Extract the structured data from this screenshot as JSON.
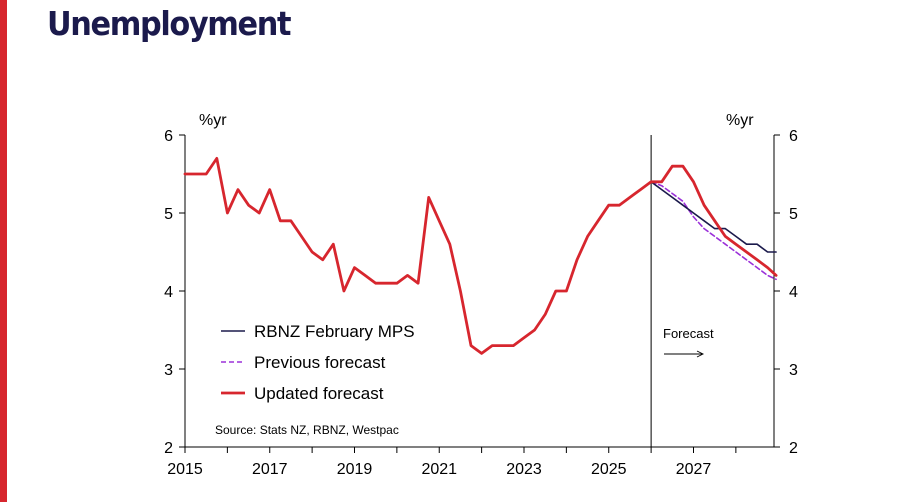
{
  "page": {
    "title": "Unemployment"
  },
  "chart_data": {
    "type": "line",
    "title": "",
    "xlabel": "",
    "ylabel_left": "%yr",
    "ylabel_right": "%yr",
    "xlim": [
      2015,
      2028.9
    ],
    "ylim": [
      2,
      6
    ],
    "yticks": [
      2,
      3,
      4,
      5,
      6
    ],
    "xticks": [
      2015,
      2017,
      2019,
      2021,
      2023,
      2025,
      2027
    ],
    "forecast_start": 2026,
    "forecast_label": "Forecast",
    "source": "Source: Stats NZ, RBNZ, Westpac",
    "legend": {
      "placement": "bottom-left"
    },
    "series": [
      {
        "name": "RBNZ February MPS",
        "color": "#1b1a4c",
        "style": "solid",
        "points": [
          [
            2026.0,
            5.4
          ],
          [
            2026.25,
            5.3
          ],
          [
            2026.5,
            5.2
          ],
          [
            2026.75,
            5.1
          ],
          [
            2027.0,
            5.0
          ],
          [
            2027.25,
            4.9
          ],
          [
            2027.5,
            4.8
          ],
          [
            2027.75,
            4.8
          ],
          [
            2028.0,
            4.7
          ],
          [
            2028.25,
            4.6
          ],
          [
            2028.5,
            4.6
          ],
          [
            2028.75,
            4.5
          ],
          [
            2028.95,
            4.5
          ]
        ]
      },
      {
        "name": "Previous forecast",
        "color": "#9b30d9",
        "style": "dashed",
        "points": [
          [
            2026.0,
            5.4
          ],
          [
            2026.25,
            5.35
          ],
          [
            2026.5,
            5.25
          ],
          [
            2026.75,
            5.15
          ],
          [
            2027.0,
            4.95
          ],
          [
            2027.25,
            4.8
          ],
          [
            2027.5,
            4.7
          ],
          [
            2027.75,
            4.6
          ],
          [
            2028.0,
            4.5
          ],
          [
            2028.25,
            4.4
          ],
          [
            2028.5,
            4.3
          ],
          [
            2028.75,
            4.2
          ],
          [
            2028.95,
            4.15
          ]
        ]
      },
      {
        "name": "Updated forecast",
        "color": "#d7262e",
        "style": "solid",
        "points": [
          [
            2015.0,
            5.5
          ],
          [
            2015.25,
            5.5
          ],
          [
            2015.5,
            5.5
          ],
          [
            2015.75,
            5.7
          ],
          [
            2016.0,
            5.0
          ],
          [
            2016.25,
            5.3
          ],
          [
            2016.5,
            5.1
          ],
          [
            2016.75,
            5.0
          ],
          [
            2017.0,
            5.3
          ],
          [
            2017.25,
            4.9
          ],
          [
            2017.5,
            4.9
          ],
          [
            2017.75,
            4.7
          ],
          [
            2018.0,
            4.5
          ],
          [
            2018.25,
            4.4
          ],
          [
            2018.5,
            4.6
          ],
          [
            2018.75,
            4.0
          ],
          [
            2019.0,
            4.3
          ],
          [
            2019.25,
            4.2
          ],
          [
            2019.5,
            4.1
          ],
          [
            2019.75,
            4.1
          ],
          [
            2020.0,
            4.1
          ],
          [
            2020.25,
            4.2
          ],
          [
            2020.5,
            4.1
          ],
          [
            2020.75,
            5.2
          ],
          [
            2021.0,
            4.9
          ],
          [
            2021.25,
            4.6
          ],
          [
            2021.5,
            4.0
          ],
          [
            2021.75,
            3.3
          ],
          [
            2022.0,
            3.2
          ],
          [
            2022.25,
            3.3
          ],
          [
            2022.5,
            3.3
          ],
          [
            2022.75,
            3.3
          ],
          [
            2023.0,
            3.4
          ],
          [
            2023.25,
            3.5
          ],
          [
            2023.5,
            3.7
          ],
          [
            2023.75,
            4.0
          ],
          [
            2024.0,
            4.0
          ],
          [
            2024.25,
            4.4
          ],
          [
            2024.5,
            4.7
          ],
          [
            2024.75,
            4.9
          ],
          [
            2025.0,
            5.1
          ],
          [
            2025.25,
            5.1
          ],
          [
            2025.5,
            5.2
          ],
          [
            2025.75,
            5.3
          ],
          [
            2026.0,
            5.4
          ],
          [
            2026.25,
            5.4
          ],
          [
            2026.5,
            5.6
          ],
          [
            2026.75,
            5.6
          ],
          [
            2027.0,
            5.4
          ],
          [
            2027.25,
            5.1
          ],
          [
            2027.5,
            4.9
          ],
          [
            2027.75,
            4.7
          ],
          [
            2028.0,
            4.6
          ],
          [
            2028.25,
            4.5
          ],
          [
            2028.5,
            4.4
          ],
          [
            2028.75,
            4.3
          ],
          [
            2028.95,
            4.2
          ]
        ]
      }
    ]
  }
}
